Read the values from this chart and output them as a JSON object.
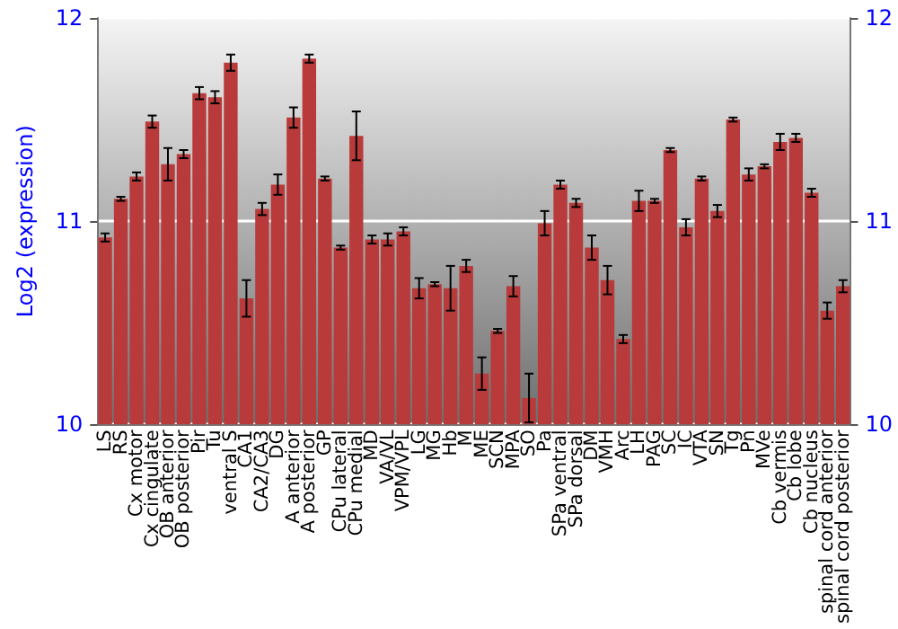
{
  "chart_data": {
    "type": "bar",
    "ylabel": "Log2 (expression)",
    "categories": [
      "LS",
      "RS",
      "Cx motor",
      "Cx cingulate",
      "OB anterior",
      "OB posterior",
      "Pir",
      "Tu",
      "ventral S",
      "CA1",
      "CA2/CA3",
      "DG",
      "A anterior",
      "A posterior",
      "GP",
      "CPu lateral",
      "CPu medial",
      "MD",
      "VA/VL",
      "VPM/VPL",
      "LG",
      "MG",
      "Hb",
      "M",
      "ME",
      "SCN",
      "MPA",
      "SO",
      "Pa",
      "SPa ventral",
      "SPa dorsal",
      "DM",
      "VMH",
      "Arc",
      "LH",
      "PAG",
      "SC",
      "IC",
      "VTA",
      "SN",
      "Tg",
      "Pn",
      "MVe",
      "Cb vermis",
      "Cb lobe",
      "Cb nucleus",
      "spinal cord anterior",
      "spinal cord posterior"
    ],
    "values": [
      10.92,
      11.11,
      11.22,
      11.49,
      11.28,
      11.33,
      11.63,
      11.61,
      11.78,
      10.62,
      11.06,
      11.18,
      11.51,
      11.8,
      11.21,
      10.87,
      11.42,
      10.91,
      10.91,
      10.95,
      10.67,
      10.69,
      10.67,
      10.78,
      10.25,
      10.46,
      10.68,
      10.13,
      10.99,
      11.18,
      11.09,
      10.87,
      10.71,
      10.42,
      11.1,
      11.1,
      11.35,
      10.97,
      11.21,
      11.05,
      11.5,
      11.23,
      11.27,
      11.39,
      11.41,
      11.14,
      10.56,
      10.68
    ],
    "errors": [
      0.02,
      0.01,
      0.02,
      0.03,
      0.08,
      0.02,
      0.03,
      0.03,
      0.04,
      0.09,
      0.03,
      0.05,
      0.05,
      0.02,
      0.01,
      0.01,
      0.12,
      0.02,
      0.03,
      0.02,
      0.05,
      0.01,
      0.11,
      0.03,
      0.08,
      0.01,
      0.05,
      0.12,
      0.06,
      0.02,
      0.02,
      0.06,
      0.07,
      0.02,
      0.05,
      0.01,
      0.01,
      0.04,
      0.01,
      0.03,
      0.01,
      0.03,
      0.01,
      0.04,
      0.02,
      0.02,
      0.04,
      0.03
    ],
    "color": "#b83a3a",
    "ylim": [
      10,
      12
    ],
    "yticks": [
      10,
      11,
      12
    ],
    "y2lim": [
      10,
      12
    ],
    "y2ticks": [
      10,
      11,
      12
    ],
    "grid": "y"
  }
}
